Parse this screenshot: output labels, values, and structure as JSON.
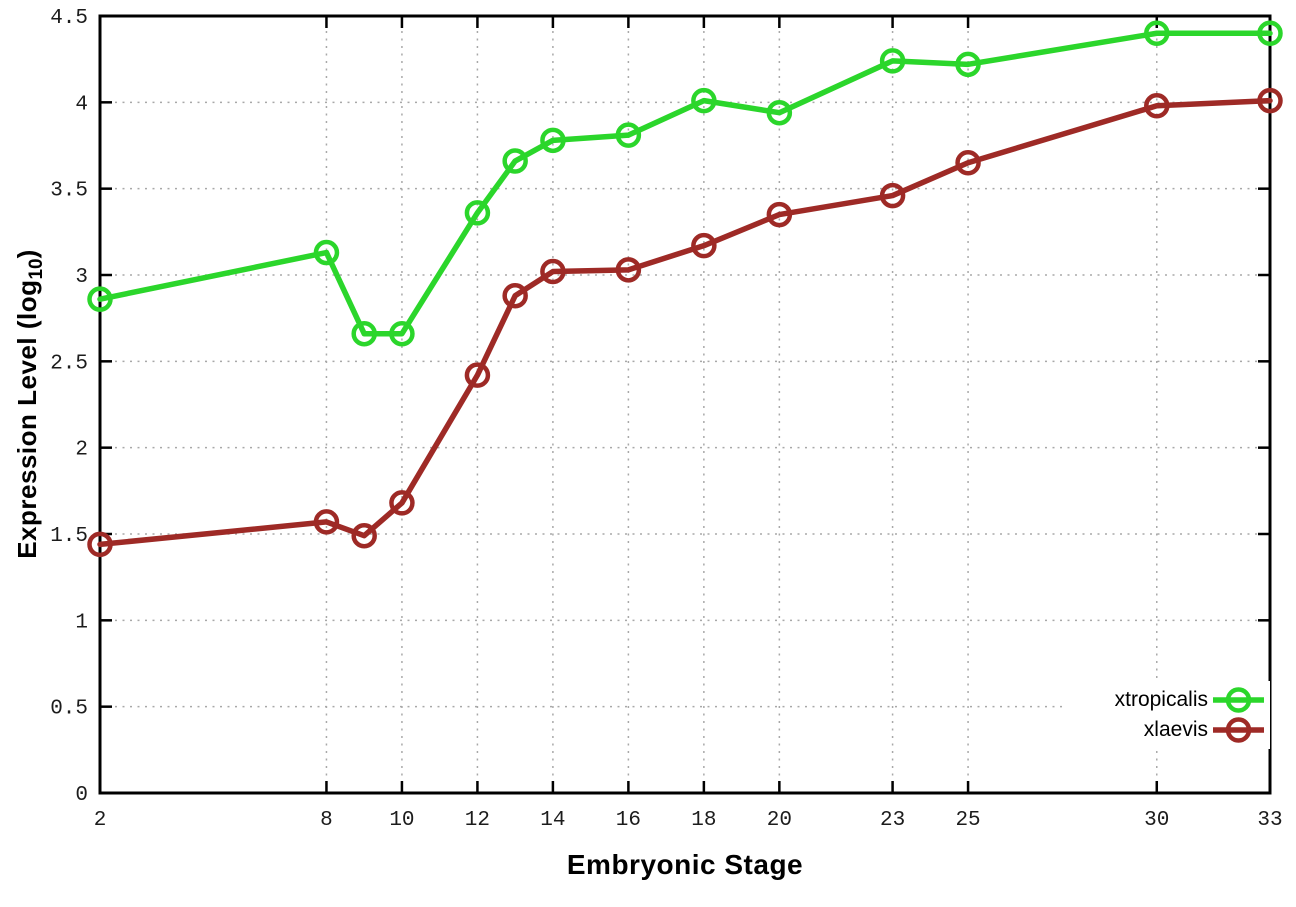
{
  "chart_data": {
    "type": "line",
    "title": "",
    "xlabel": "Embryonic Stage",
    "ylabel": {
      "text": "Expression Level (log10)",
      "main": "Expression Level (log",
      "sub": "10",
      "close": ")"
    },
    "xlim": [
      2,
      33
    ],
    "ylim": [
      0,
      4.5
    ],
    "xticks": [
      2,
      8,
      10,
      12,
      14,
      16,
      18,
      20,
      23,
      25,
      30,
      33
    ],
    "yticks": [
      0,
      0.5,
      1,
      1.5,
      2,
      2.5,
      3,
      3.5,
      4,
      4.5
    ],
    "ytick_labels": [
      "0",
      "0.5",
      "1",
      "1.5",
      "2",
      "2.5",
      "3",
      "3.5",
      "4",
      "4.5"
    ],
    "grid": true,
    "legend_position": "bottom-right",
    "x": [
      2,
      8,
      9,
      10,
      12,
      13,
      14,
      16,
      18,
      20,
      23,
      25,
      30,
      33
    ],
    "series": [
      {
        "name": "xtropicalis",
        "color": "#2bd62b",
        "marker": "open-circle",
        "values": [
          2.86,
          3.13,
          2.66,
          2.66,
          3.36,
          3.66,
          3.78,
          3.81,
          4.01,
          3.94,
          4.24,
          4.22,
          4.4,
          4.4
        ]
      },
      {
        "name": "xlaevis",
        "color": "#9e2a26",
        "marker": "open-circle",
        "values": [
          1.44,
          1.57,
          1.49,
          1.68,
          2.42,
          2.88,
          3.02,
          3.03,
          3.17,
          3.35,
          3.46,
          3.65,
          3.98,
          4.01
        ]
      }
    ],
    "styles": {
      "axis_color": "#000000",
      "grid_color": "#a8a8a8",
      "tick_label_color": "#1c1c1c",
      "background": "#ffffff"
    }
  }
}
